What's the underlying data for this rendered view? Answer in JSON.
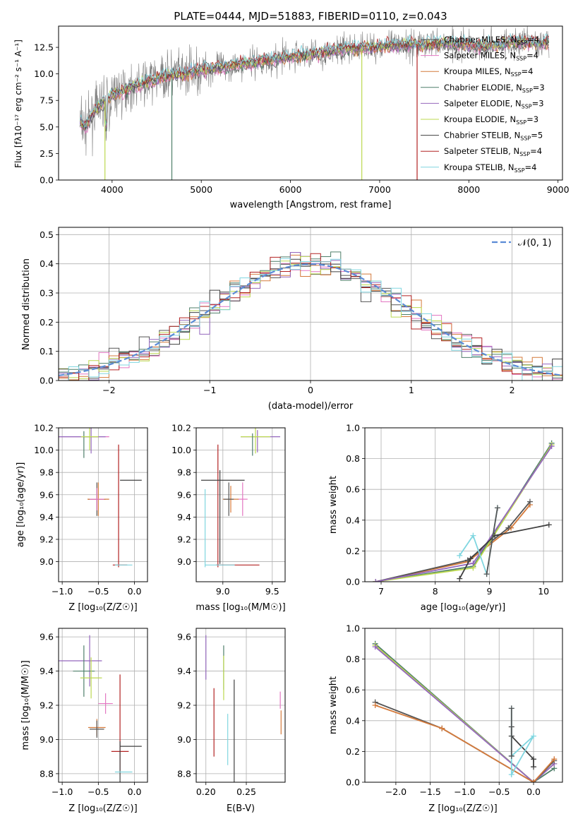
{
  "colors": {
    "grid": "#b0b0b0",
    "normal": "#5b8bd6",
    "series": [
      "#555555",
      "#e377c2",
      "#d47a3b",
      "#4f7f6a",
      "#9467bd",
      "#bcd950",
      "#404040",
      "#b22222",
      "#80d6e0"
    ]
  },
  "chart_data": [
    {
      "id": "spectrum",
      "type": "line",
      "title": "PLATE=0444, MJD=51883, FIBERID=0110, z=0.043",
      "xlabel": "wavelength [Angstrom, rest frame]",
      "ylabel": "Flux [fλ10⁻¹⁷ erg cm⁻² s⁻¹ A⁻¹]",
      "xlim": [
        3400,
        9050
      ],
      "ylim": [
        0,
        14.5
      ],
      "xticks": [
        4000,
        5000,
        6000,
        7000,
        8000,
        9000
      ],
      "yticks": [
        0.0,
        2.5,
        5.0,
        7.5,
        10.0,
        12.5
      ],
      "grid": false,
      "legend_placement": "right",
      "legend": [
        {
          "label": "Chabrier MILES, N",
          "sub": "SSP",
          "tail": "=4"
        },
        {
          "label": "Salpeter MILES, N",
          "sub": "SSP",
          "tail": "=4"
        },
        {
          "label": "Kroupa MILES, N",
          "sub": "SSP",
          "tail": "=4"
        },
        {
          "label": "Chabrier ELODIE, N",
          "sub": "SSP",
          "tail": "=3"
        },
        {
          "label": "Salpeter ELODIE, N",
          "sub": "SSP",
          "tail": "=3"
        },
        {
          "label": "Kroupa ELODIE, N",
          "sub": "SSP",
          "tail": "=3"
        },
        {
          "label": "Chabrier STELIB, N",
          "sub": "SSP",
          "tail": "=5"
        },
        {
          "label": "Salpeter STELIB, N",
          "sub": "SSP",
          "tail": "=4"
        },
        {
          "label": "Kroupa STELIB, N",
          "sub": "SSP",
          "tail": "=4"
        }
      ],
      "continuum": [
        [
          3640,
          5.5
        ],
        [
          3700,
          5.0
        ],
        [
          3800,
          6.5
        ],
        [
          3900,
          7.3
        ],
        [
          4000,
          8.0
        ],
        [
          4200,
          8.7
        ],
        [
          4400,
          9.3
        ],
        [
          4600,
          9.8
        ],
        [
          4800,
          10.0
        ],
        [
          5000,
          10.4
        ],
        [
          5200,
          10.6
        ],
        [
          5500,
          11.0
        ],
        [
          5800,
          11.3
        ],
        [
          6000,
          11.6
        ],
        [
          6300,
          11.9
        ],
        [
          6600,
          12.3
        ],
        [
          7000,
          12.6
        ],
        [
          7400,
          12.8
        ],
        [
          7800,
          12.9
        ],
        [
          8200,
          12.6
        ],
        [
          8500,
          13.0
        ],
        [
          8800,
          12.9
        ],
        [
          8900,
          13.0
        ]
      ],
      "drops": [
        [
          3920,
          "#bcd950"
        ],
        [
          4670,
          "#4f7f6a"
        ],
        [
          6800,
          "#bcd950"
        ],
        [
          7420,
          "#b22222"
        ]
      ]
    },
    {
      "id": "residuals",
      "type": "histogram",
      "xlabel": "(data-model)/error",
      "ylabel": "Normed distribution",
      "xlim": [
        -2.5,
        2.5
      ],
      "ylim": [
        0,
        0.525
      ],
      "xticks": [
        -2,
        -1,
        0,
        1,
        2
      ],
      "yticks": [
        0.0,
        0.1,
        0.2,
        0.3,
        0.4,
        0.5
      ],
      "grid": true,
      "legend_placement": "top-right",
      "legend": [
        {
          "label": "𝒩(0, 1)"
        }
      ]
    },
    {
      "id": "age-vs-z",
      "type": "scatter",
      "xlabel": "Z [log₁₀(Z/Z☉)]",
      "ylabel": "age  [log₁₀(age/yr)]",
      "xlim": [
        -1.05,
        0.18
      ],
      "ylim": [
        8.82,
        10.2
      ],
      "xticks": [
        -1.0,
        -0.5,
        0.0
      ],
      "yticks": [
        9.0,
        9.2,
        9.4,
        9.6,
        9.8,
        10.0,
        10.2
      ],
      "grid": true,
      "points": [
        {
          "x": -0.7,
          "y": 10.12,
          "xerr": 0.35,
          "yerr": 0.0,
          "c": 1
        },
        {
          "x": -0.6,
          "y": 10.12,
          "xerr": 0.1,
          "yerr": 0.15,
          "c": 4
        },
        {
          "x": -0.75,
          "y": 10.12,
          "xerr": 0.35,
          "yerr": 0.0,
          "c": 4
        },
        {
          "x": -0.7,
          "y": 10.05,
          "xerr": 0.0,
          "yerr": 0.12,
          "c": 3
        },
        {
          "x": -0.62,
          "y": 10.12,
          "xerr": 0.12,
          "yerr": 0.12,
          "c": 5
        },
        {
          "x": -0.52,
          "y": 9.56,
          "xerr": 0.12,
          "yerr": 0.15,
          "c": 0
        },
        {
          "x": -0.5,
          "y": 9.56,
          "xerr": 0.15,
          "yerr": 0.15,
          "c": 2
        },
        {
          "x": -0.52,
          "y": 9.56,
          "xerr": 0.1,
          "yerr": 0.1,
          "c": 1
        },
        {
          "x": -0.22,
          "y": 9.5,
          "xerr": 0.0,
          "yerr": 0.55,
          "c": 7
        },
        {
          "x": -0.05,
          "y": 9.73,
          "xerr": 0.15,
          "yerr": 0.0,
          "c": 6
        },
        {
          "x": -0.2,
          "y": 8.97,
          "xerr": 0.1,
          "yerr": 0.0,
          "c": 7
        },
        {
          "x": -0.15,
          "y": 8.97,
          "xerr": 0.12,
          "yerr": 0.0,
          "c": 8
        }
      ]
    },
    {
      "id": "age-vs-mass",
      "type": "scatter",
      "xlabel": "mass [log₁₀(M/M☉)]",
      "xlim": [
        8.73,
        9.63
      ],
      "ylim": [
        8.82,
        10.2
      ],
      "xticks": [
        9.0,
        9.5
      ],
      "yticks": [
        9.0,
        9.2,
        9.4,
        9.6,
        9.8,
        10.0,
        10.2
      ],
      "grid": true,
      "points": [
        {
          "x": 9.38,
          "y": 10.12,
          "xerr": 0.2,
          "yerr": 0.0,
          "c": 4
        },
        {
          "x": 9.35,
          "y": 10.08,
          "xerr": 0.0,
          "yerr": 0.1,
          "c": 4
        },
        {
          "x": 9.33,
          "y": 10.12,
          "xerr": 0.15,
          "yerr": 0.15,
          "c": 5
        },
        {
          "x": 9.3,
          "y": 10.05,
          "xerr": 0.0,
          "yerr": 0.1,
          "c": 3
        },
        {
          "x": 9.2,
          "y": 9.56,
          "xerr": 0.05,
          "yerr": 0.15,
          "c": 1
        },
        {
          "x": 9.08,
          "y": 9.56,
          "xerr": 0.08,
          "yerr": 0.12,
          "c": 2
        },
        {
          "x": 9.06,
          "y": 9.56,
          "xerr": 0.05,
          "yerr": 0.15,
          "c": 0
        },
        {
          "x": 8.95,
          "y": 9.5,
          "xerr": 0.0,
          "yerr": 0.55,
          "c": 7
        },
        {
          "x": 9.0,
          "y": 9.73,
          "xerr": 0.22,
          "yerr": 0.0,
          "c": 6
        },
        {
          "x": 8.97,
          "y": 9.4,
          "xerr": 0.0,
          "yerr": 0.42,
          "c": 6
        },
        {
          "x": 9.15,
          "y": 8.97,
          "xerr": 0.22,
          "yerr": 0.0,
          "c": 7
        },
        {
          "x": 8.97,
          "y": 8.97,
          "xerr": 0.15,
          "yerr": 0.0,
          "c": 8
        },
        {
          "x": 8.82,
          "y": 9.3,
          "xerr": 0.0,
          "yerr": 0.35,
          "c": 8
        }
      ]
    },
    {
      "id": "weight-vs-age",
      "type": "line",
      "xlabel": "age  [log₁₀(age/yr)]",
      "ylabel": "mass weight",
      "xlim": [
        6.7,
        10.35
      ],
      "ylim": [
        0,
        1.0
      ],
      "xticks": [
        7,
        8,
        9,
        10
      ],
      "yticks": [
        0.0,
        0.2,
        0.4,
        0.6,
        0.8,
        1.0
      ],
      "grid": true,
      "series": [
        {
          "c": 2,
          "points": [
            [
              6.9,
              0.0
            ],
            [
              8.6,
              0.13
            ],
            [
              9.4,
              0.35
            ],
            [
              9.75,
              0.5
            ]
          ]
        },
        {
          "c": 0,
          "points": [
            [
              6.9,
              0.0
            ],
            [
              8.6,
              0.14
            ],
            [
              9.35,
              0.35
            ],
            [
              9.75,
              0.52
            ]
          ]
        },
        {
          "c": 3,
          "points": [
            [
              6.9,
              0.0
            ],
            [
              8.7,
              0.1
            ],
            [
              10.15,
              0.9
            ]
          ]
        },
        {
          "c": 5,
          "points": [
            [
              6.9,
              0.0
            ],
            [
              8.7,
              0.09
            ],
            [
              10.15,
              0.89
            ]
          ]
        },
        {
          "c": 4,
          "points": [
            [
              6.9,
              0.0
            ],
            [
              8.7,
              0.12
            ],
            [
              10.15,
              0.88
            ]
          ]
        },
        {
          "c": 6,
          "points": [
            [
              8.45,
              0.02
            ],
            [
              8.65,
              0.15
            ],
            [
              9.1,
              0.3
            ],
            [
              10.1,
              0.37
            ]
          ]
        },
        {
          "c": 8,
          "points": [
            [
              8.45,
              0.17
            ],
            [
              8.7,
              0.3
            ],
            [
              8.95,
              0.05
            ],
            [
              9.15,
              0.48
            ]
          ]
        },
        {
          "c": 0,
          "points": [
            [
              8.95,
              0.05
            ],
            [
              9.15,
              0.48
            ]
          ]
        }
      ]
    },
    {
      "id": "mass-vs-z",
      "type": "scatter",
      "xlabel": "Z [log₁₀(Z/Z☉)]",
      "ylabel": "mass [log₁₀(M/M☉)]",
      "xlim": [
        -1.05,
        0.18
      ],
      "ylim": [
        8.75,
        9.65
      ],
      "xticks": [
        -1.0,
        -0.5,
        0.0
      ],
      "yticks": [
        8.8,
        9.0,
        9.2,
        9.4,
        9.6
      ],
      "grid": true,
      "points": [
        {
          "x": -0.75,
          "y": 9.46,
          "xerr": 0.3,
          "yerr": 0.0,
          "c": 4
        },
        {
          "x": -0.62,
          "y": 9.46,
          "xerr": 0.0,
          "yerr": 0.15,
          "c": 4
        },
        {
          "x": -0.7,
          "y": 9.4,
          "xerr": 0.15,
          "yerr": 0.15,
          "c": 3
        },
        {
          "x": -0.6,
          "y": 9.36,
          "xerr": 0.15,
          "yerr": 0.12,
          "c": 5
        },
        {
          "x": -0.4,
          "y": 9.21,
          "xerr": 0.1,
          "yerr": 0.06,
          "c": 1
        },
        {
          "x": -0.52,
          "y": 9.07,
          "xerr": 0.12,
          "yerr": 0.05,
          "c": 2
        },
        {
          "x": -0.52,
          "y": 9.06,
          "xerr": 0.1,
          "yerr": 0.05,
          "c": 0
        },
        {
          "x": -0.2,
          "y": 9.1,
          "xerr": 0.0,
          "yerr": 0.28,
          "c": 7
        },
        {
          "x": -0.2,
          "y": 8.93,
          "xerr": 0.12,
          "yerr": 0.0,
          "c": 7
        },
        {
          "x": -0.05,
          "y": 8.96,
          "xerr": 0.15,
          "yerr": 0.0,
          "c": 6
        },
        {
          "x": -0.2,
          "y": 8.87,
          "xerr": 0.0,
          "yerr": 0.12,
          "c": 6
        },
        {
          "x": -0.15,
          "y": 8.81,
          "xerr": 0.12,
          "yerr": 0.0,
          "c": 8
        }
      ]
    },
    {
      "id": "mass-vs-ebv",
      "type": "scatter",
      "xlabel": "E(B-V)",
      "xlim": [
        0.188,
        0.298
      ],
      "ylim": [
        8.75,
        9.65
      ],
      "xticks": [
        0.2,
        0.25
      ],
      "yticks": [
        8.8,
        9.0,
        9.2,
        9.4,
        9.6
      ],
      "grid": true,
      "points": [
        {
          "x": 0.2,
          "y": 9.48,
          "xerr": 0.0,
          "yerr": 0.13,
          "c": 4
        },
        {
          "x": 0.21,
          "y": 9.1,
          "xerr": 0.0,
          "yerr": 0.2,
          "c": 7
        },
        {
          "x": 0.222,
          "y": 9.42,
          "xerr": 0.0,
          "yerr": 0.13,
          "c": 3
        },
        {
          "x": 0.222,
          "y": 9.36,
          "xerr": 0.0,
          "yerr": 0.13,
          "c": 5
        },
        {
          "x": 0.227,
          "y": 9.0,
          "xerr": 0.0,
          "yerr": 0.15,
          "c": 8
        },
        {
          "x": 0.235,
          "y": 9.05,
          "xerr": 0.0,
          "yerr": 0.3,
          "c": 6
        },
        {
          "x": 0.292,
          "y": 9.23,
          "xerr": 0.0,
          "yerr": 0.05,
          "c": 1
        },
        {
          "x": 0.293,
          "y": 9.1,
          "xerr": 0.0,
          "yerr": 0.07,
          "c": 2
        }
      ]
    },
    {
      "id": "weight-vs-z",
      "type": "line",
      "xlabel": "Z [log₁₀(Z/Z☉)]",
      "ylabel": "mass weight",
      "xlim": [
        -2.45,
        0.42
      ],
      "ylim": [
        0,
        1.0
      ],
      "xticks": [
        -2.0,
        -1.5,
        -1.0,
        -0.5,
        0.0
      ],
      "yticks": [
        0.0,
        0.2,
        0.4,
        0.6,
        0.8,
        1.0
      ],
      "grid": true,
      "series": [
        {
          "c": 3,
          "points": [
            [
              -2.3,
              0.9
            ],
            [
              0.0,
              0.0
            ],
            [
              0.3,
              0.09
            ]
          ]
        },
        {
          "c": 5,
          "points": [
            [
              -2.3,
              0.89
            ],
            [
              0.0,
              0.0
            ],
            [
              0.3,
              0.12
            ]
          ]
        },
        {
          "c": 4,
          "points": [
            [
              -2.3,
              0.88
            ],
            [
              0.0,
              0.0
            ],
            [
              0.3,
              0.12
            ]
          ]
        },
        {
          "c": 0,
          "points": [
            [
              -2.3,
              0.52
            ],
            [
              -1.33,
              0.35
            ],
            [
              0.0,
              0.0
            ],
            [
              0.3,
              0.14
            ]
          ]
        },
        {
          "c": 2,
          "points": [
            [
              -2.3,
              0.5
            ],
            [
              -1.33,
              0.35
            ],
            [
              0.0,
              0.0
            ],
            [
              0.3,
              0.15
            ]
          ]
        },
        {
          "c": 6,
          "points": [
            [
              -0.32,
              0.36
            ],
            [
              -0.32,
              0.3
            ],
            [
              0.0,
              0.15
            ],
            [
              0.0,
              0.1
            ]
          ]
        },
        {
          "c": 8,
          "points": [
            [
              -0.32,
              0.48
            ],
            [
              -0.32,
              0.05
            ],
            [
              0.0,
              0.3
            ],
            [
              -0.32,
              0.17
            ]
          ]
        },
        {
          "c": 0,
          "points": [
            [
              -0.32,
              0.48
            ],
            [
              -0.32,
              0.17
            ]
          ]
        }
      ]
    }
  ]
}
